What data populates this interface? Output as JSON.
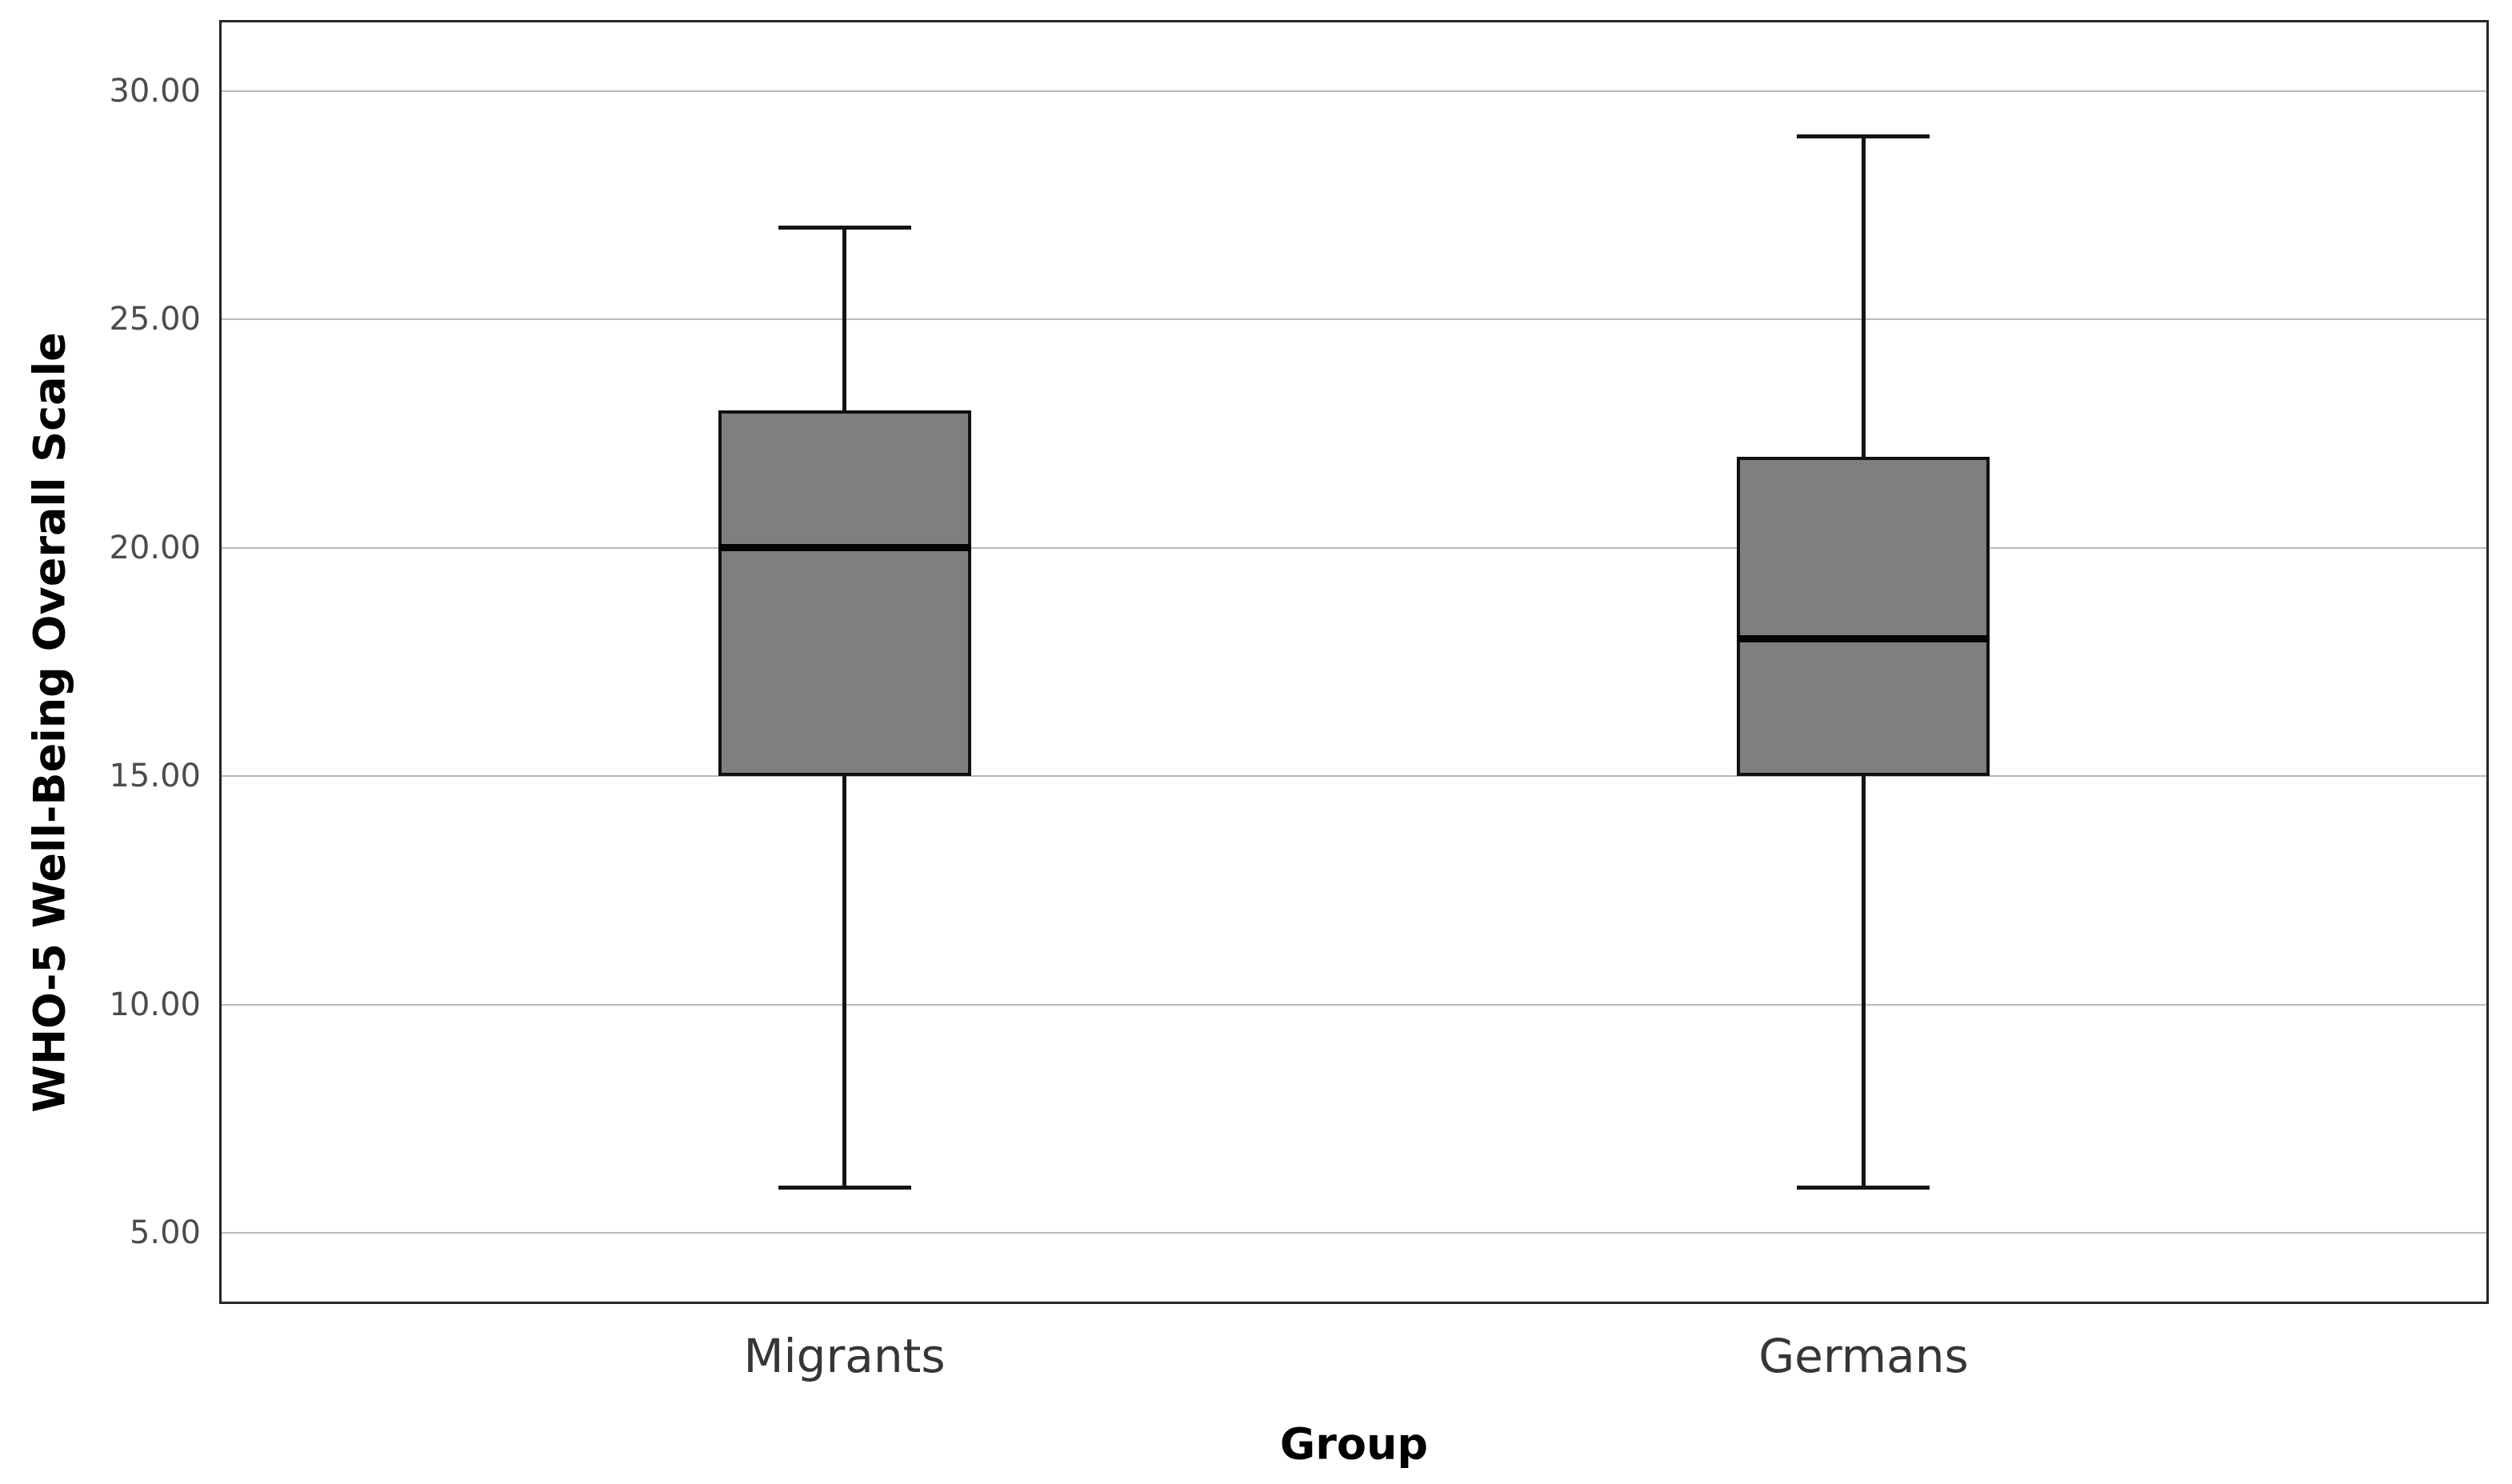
{
  "figure": {
    "background": "#ffffff",
    "frame_color": "#262626",
    "gridline_color": "#b9b9b9",
    "box_fill": "#7f7f7f",
    "box_border": "#111111",
    "tick_label_color": "#4c4c4c",
    "category_label_color": "#363636",
    "axis_title_color": "#000000"
  },
  "chart_data": {
    "type": "boxplot",
    "title": "",
    "xlabel": "Group",
    "ylabel": "WHO-5 Well-Being Overall Scale",
    "categories": [
      "Migrants",
      "Germans"
    ],
    "series": [
      {
        "name": "Migrants",
        "min": 6,
        "q1": 15,
        "median": 20,
        "q3": 23,
        "max": 27
      },
      {
        "name": "Germans",
        "min": 6,
        "q1": 15,
        "median": 18,
        "q3": 22,
        "max": 29
      }
    ],
    "yticks": [
      {
        "value": 30,
        "label": "30.00"
      },
      {
        "value": 25,
        "label": "25.00"
      },
      {
        "value": 20,
        "label": "20.00"
      },
      {
        "value": 15,
        "label": "15.00"
      },
      {
        "value": 10,
        "label": "10.00"
      },
      {
        "value": 5,
        "label": "5.00"
      }
    ],
    "ylim": [
      3.5,
      31.5
    ],
    "grid": "horizontal",
    "legend": "none"
  }
}
